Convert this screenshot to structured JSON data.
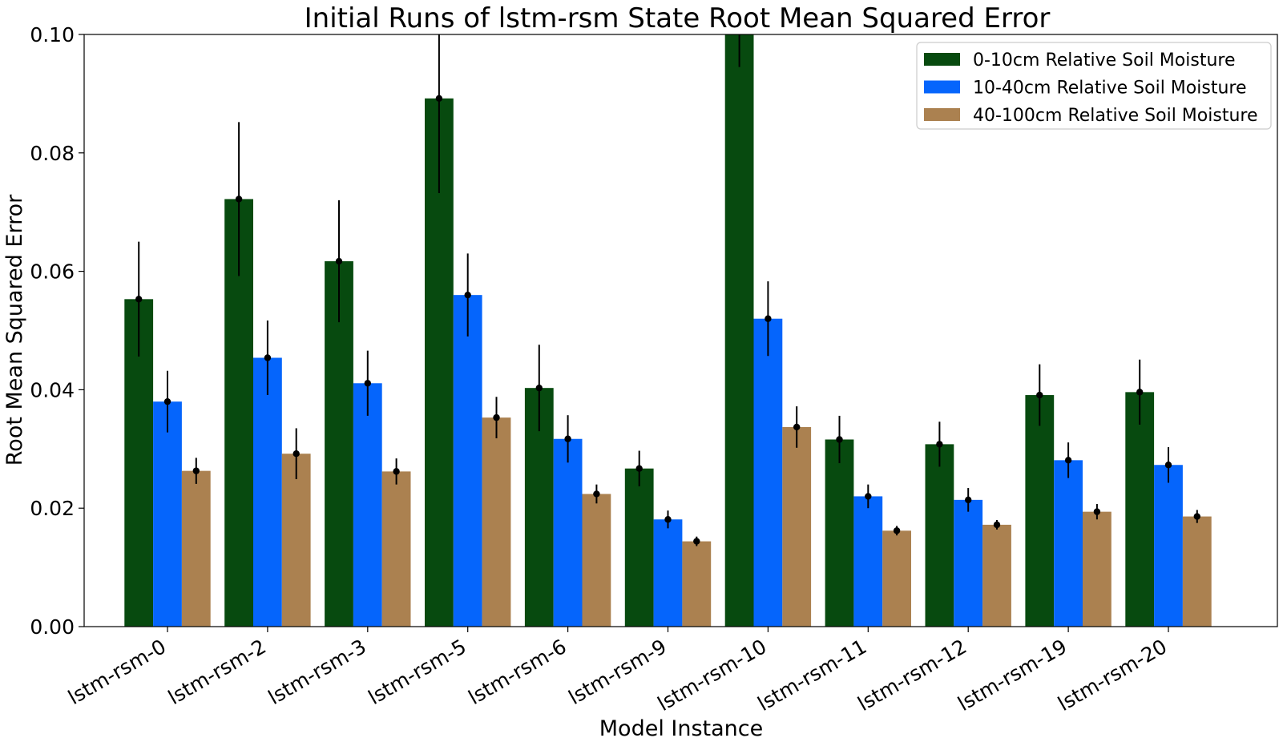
{
  "chart_data": {
    "type": "bar",
    "title": "Initial Runs of lstm-rsm State Root Mean Squared Error",
    "xlabel": "Model Instance",
    "ylabel": "Root Mean Squared Error",
    "ylim": [
      0,
      0.1
    ],
    "yticks": [
      "0.00",
      "0.02",
      "0.04",
      "0.06",
      "0.08",
      "0.10"
    ],
    "grid": false,
    "legend_position": "top-right",
    "categories": [
      "lstm-rsm-0",
      "lstm-rsm-2",
      "lstm-rsm-3",
      "lstm-rsm-5",
      "lstm-rsm-6",
      "lstm-rsm-9",
      "lstm-rsm-10",
      "lstm-rsm-11",
      "lstm-rsm-12",
      "lstm-rsm-19",
      "lstm-rsm-20"
    ],
    "series": [
      {
        "name": "0-10cm Relative Soil Moisture",
        "color": "#074a0f",
        "values": [
          0.0553,
          0.0722,
          0.0617,
          0.0892,
          0.0403,
          0.0267,
          0.1045,
          0.0316,
          0.0308,
          0.0391,
          0.0396
        ],
        "errors": [
          0.0097,
          0.013,
          0.0103,
          0.016,
          0.0073,
          0.003,
          0.01,
          0.004,
          0.0038,
          0.0052,
          0.0055
        ]
      },
      {
        "name": "10-40cm Relative Soil Moisture",
        "color": "#0565fc",
        "values": [
          0.038,
          0.0454,
          0.0411,
          0.056,
          0.0317,
          0.0181,
          0.052,
          0.022,
          0.0214,
          0.0281,
          0.0273
        ],
        "errors": [
          0.0052,
          0.0063,
          0.0055,
          0.007,
          0.004,
          0.0015,
          0.0063,
          0.002,
          0.002,
          0.003,
          0.003
        ]
      },
      {
        "name": "40-100cm Relative Soil Moisture",
        "color": "#ab8150",
        "values": [
          0.0263,
          0.0292,
          0.0262,
          0.0353,
          0.0224,
          0.0144,
          0.0337,
          0.0162,
          0.0172,
          0.0194,
          0.0186
        ],
        "errors": [
          0.0022,
          0.0043,
          0.0022,
          0.0035,
          0.0016,
          0.0008,
          0.0035,
          0.0008,
          0.0008,
          0.0013,
          0.0011
        ]
      }
    ]
  }
}
